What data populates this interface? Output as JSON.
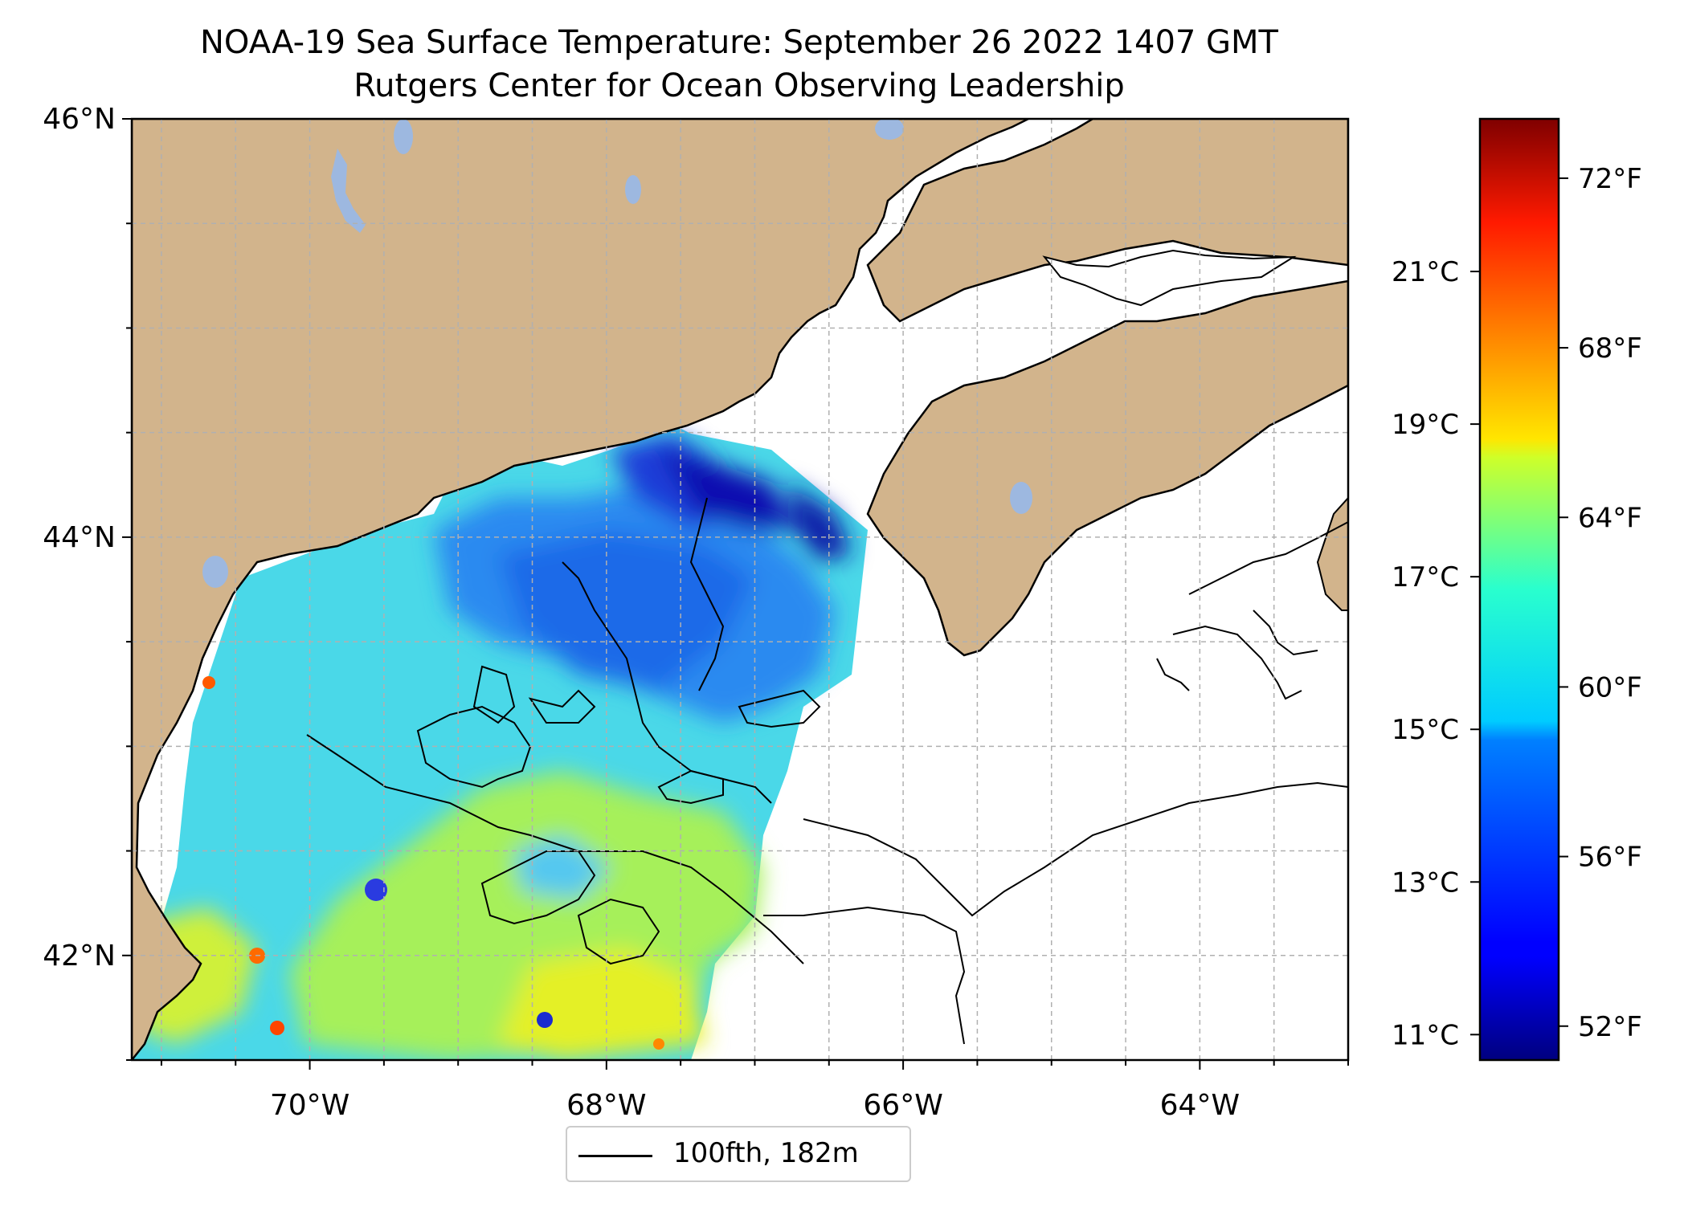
{
  "header": {
    "title": "NOAA-19 Sea Surface Temperature: September 26 2022 1407 GMT",
    "subtitle": "Rutgers Center for Ocean Observing Leadership"
  },
  "map": {
    "extent": {
      "lon_min": -71.2,
      "lon_max": -63.0,
      "lat_min": 41.5,
      "lat_max": 46.0
    },
    "lat_ticks": [
      {
        "value": 46,
        "label": "46°N"
      },
      {
        "value": 44,
        "label": "44°N"
      },
      {
        "value": 42,
        "label": "42°N"
      }
    ],
    "lon_ticks": [
      {
        "value": -70,
        "label": "70°W"
      },
      {
        "value": -68,
        "label": "68°W"
      },
      {
        "value": -66,
        "label": "66°W"
      },
      {
        "value": -64,
        "label": "64°W"
      }
    ],
    "gridlines": true,
    "colors": {
      "land": "#d2b48c",
      "lakes": "#9db8e0",
      "ocean_no_data": "#ffffff",
      "coastline": "#000000"
    }
  },
  "colorbar": {
    "colormap": "jet",
    "range_f": [
      51.2,
      73.4
    ],
    "celsius_labels": [
      "21°C",
      "19°C",
      "17°C",
      "15°C",
      "13°C",
      "11°C"
    ],
    "celsius_values": [
      21,
      19,
      17,
      15,
      13,
      11
    ],
    "fahrenheit_labels": [
      "72°F",
      "68°F",
      "64°F",
      "60°F",
      "56°F",
      "52°F"
    ],
    "fahrenheit_values": [
      72,
      68,
      64,
      60,
      56,
      52
    ]
  },
  "legend": {
    "label": "100fth, 182m"
  }
}
